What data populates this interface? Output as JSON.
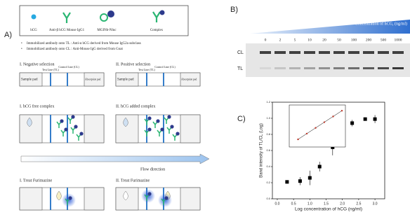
{
  "panels": {
    "a": "A)",
    "b": "B)",
    "c": "C)"
  },
  "legend": [
    "hCG",
    "Anti-β hCG Mouse IgG1",
    "MGINb-Nluc",
    "Complex"
  ],
  "notes": [
    "Immobilized  antibody onto TL : Anti-α hCG derived from Mouse IgG2a subclass",
    "Immobilized  antibody onto CL : Anti-Mouse IgG derived from Goat"
  ],
  "strip_labels": {
    "test_line": "Test Line (TL)",
    "control_line": "Control Line (CL)",
    "sample_pad": "Sample pad",
    "absorption_pad": "Absorption pad"
  },
  "sections": [
    "I. Negative selection",
    "II. Positive selection",
    "I. hCG free complex",
    "II. hCG added complex",
    "I. Treat Furimazine",
    "II. Treat Furimazine"
  ],
  "flow": "Flow direction",
  "gel": {
    "title": "Concentration of hCG, (ng/ml)",
    "concentrations": [
      0,
      2,
      5,
      10,
      20,
      50,
      100,
      200,
      500,
      1000
    ],
    "cl": "CL",
    "tl": "TL"
  },
  "chart_data": [
    {
      "type": "scatter",
      "x_label": "Log concentration of hCG (ng/ml)",
      "y_label": "Band intensity of TL/CL (Log)",
      "x": [
        0.3,
        0.7,
        1.0,
        1.3,
        1.7,
        2.0,
        2.3,
        2.7,
        3.0
      ],
      "values": [
        0.21,
        0.22,
        0.26,
        0.4,
        0.64,
        0.78,
        0.94,
        0.99,
        0.99
      ],
      "errors": [
        0.02,
        0.05,
        0.09,
        0.06,
        0.1,
        0.05,
        0.04,
        0.02,
        0.05
      ],
      "color": "#000000",
      "xlim": [
        -0.15,
        3.3
      ],
      "xticks": [
        {
          "value": 0,
          "label": "0.0"
        },
        {
          "value": 0.5,
          "label": "0.5"
        },
        {
          "value": 1,
          "label": "1.0"
        },
        {
          "value": 1.5,
          "label": "1.5"
        },
        {
          "value": 2,
          "label": "2.0"
        },
        {
          "value": 2.5,
          "label": "2.5"
        },
        {
          "value": 3,
          "label": "3.0"
        }
      ],
      "ylim": [
        0,
        1.2
      ],
      "yticks": [
        {
          "value": 0,
          "label": "0.0"
        },
        {
          "value": 0.2,
          "label": "0.2"
        },
        {
          "value": 0.4,
          "label": "0.4"
        },
        {
          "value": 0.6,
          "label": "0.6"
        },
        {
          "value": 0.8,
          "label": "0.8"
        },
        {
          "value": 1,
          "label": "1.0"
        },
        {
          "value": 1.2,
          "label": "1.2"
        }
      ]
    },
    {
      "type": "line",
      "x": [
        0.5,
        1.0,
        1.5,
        2.0,
        2.5,
        3.0
      ],
      "values": [
        0.2,
        0.35,
        0.5,
        0.65,
        0.8,
        0.95
      ],
      "color": "#c0392b",
      "xlim": [
        0,
        3.2
      ],
      "ylim": [
        0,
        1.1
      ]
    }
  ]
}
